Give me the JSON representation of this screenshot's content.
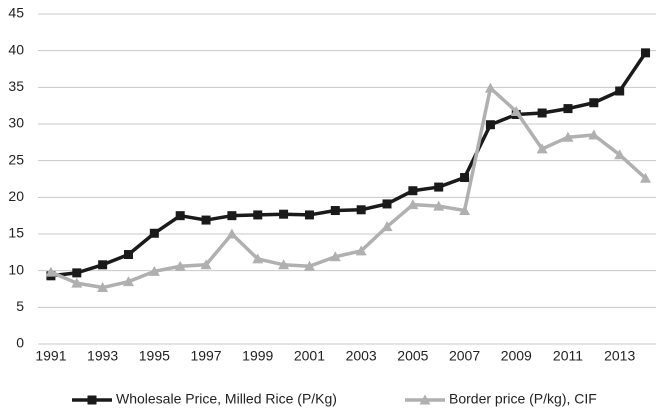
{
  "chart_data": {
    "type": "line",
    "x": [
      1991,
      1992,
      1993,
      1994,
      1995,
      1996,
      1997,
      1998,
      1999,
      2000,
      2001,
      2002,
      2003,
      2004,
      2005,
      2006,
      2007,
      2008,
      2009,
      2010,
      2011,
      2012,
      2013,
      2014
    ],
    "series": [
      {
        "name": "Wholesale Price, Milled Rice (P/Kg)",
        "color": "#1a1a1a",
        "marker": "square",
        "values": [
          9.3,
          9.7,
          10.8,
          12.2,
          15.1,
          17.5,
          16.9,
          17.5,
          17.6,
          17.7,
          17.6,
          18.2,
          18.3,
          19.1,
          20.9,
          21.4,
          22.7,
          29.9,
          31.3,
          31.5,
          32.1,
          32.9,
          34.5,
          39.7
        ]
      },
      {
        "name": "Border price (P/kg), CIF",
        "color": "#b0b0b0",
        "marker": "triangle",
        "values": [
          9.8,
          8.3,
          7.7,
          8.5,
          9.9,
          10.6,
          10.8,
          15.0,
          11.6,
          10.8,
          10.6,
          11.9,
          12.7,
          16.0,
          19.0,
          18.8,
          18.2,
          34.9,
          31.7,
          26.6,
          28.2,
          28.5,
          25.8,
          22.6
        ]
      }
    ],
    "xlim": [
      1990.5,
      2014.25
    ],
    "xticks": [
      1991,
      1993,
      1995,
      1997,
      1999,
      2001,
      2003,
      2005,
      2007,
      2009,
      2011,
      2013
    ],
    "ylim": [
      0,
      45
    ],
    "yticks": [
      0,
      5,
      10,
      15,
      20,
      25,
      30,
      35,
      40,
      45
    ],
    "grid": true,
    "legend": "bottom"
  }
}
